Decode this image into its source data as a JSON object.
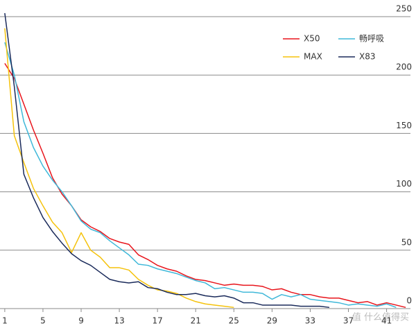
{
  "chart_data": {
    "type": "line",
    "x": [
      1,
      2,
      3,
      4,
      5,
      6,
      7,
      8,
      9,
      10,
      11,
      12,
      13,
      14,
      15,
      16,
      17,
      18,
      19,
      20,
      21,
      22,
      23,
      24,
      25,
      26,
      27,
      28,
      29,
      30,
      31,
      32,
      33,
      34,
      35,
      36,
      37,
      38,
      39,
      40,
      41,
      42,
      43
    ],
    "xlim": [
      0.5,
      43.5
    ],
    "xticks": [
      1,
      5,
      9,
      13,
      17,
      21,
      25,
      29,
      33,
      37,
      41
    ],
    "ylim": [
      0,
      250
    ],
    "yticks": [
      0,
      50,
      100,
      150,
      200,
      250
    ],
    "grid": true,
    "legend": "upper right",
    "series": [
      {
        "name": "X50",
        "color": "#e8141b",
        "values": [
          210,
          197,
          175,
          153,
          133,
          112,
          98,
          88,
          76,
          70,
          66,
          60,
          57,
          55,
          46,
          42,
          37,
          34,
          32,
          28,
          25,
          24,
          22,
          20,
          21,
          20,
          20,
          19,
          16,
          17,
          14,
          12,
          12,
          10,
          9,
          9,
          7,
          5,
          6,
          3,
          5,
          3,
          1
        ]
      },
      {
        "name": "畅呼吸",
        "color": "#3fb8d9",
        "values": [
          228,
          200,
          160,
          138,
          122,
          110,
          100,
          88,
          75,
          68,
          65,
          58,
          52,
          46,
          38,
          37,
          34,
          32,
          30,
          27,
          24,
          22,
          17,
          18,
          16,
          14,
          14,
          13,
          8,
          12,
          10,
          12,
          8,
          7,
          6,
          5,
          3,
          4,
          3,
          2,
          4,
          1,
          null
        ]
      },
      {
        "name": "MAX",
        "color": "#f5c20b",
        "values": [
          240,
          148,
          125,
          103,
          88,
          74,
          65,
          48,
          65,
          50,
          44,
          35,
          35,
          33,
          25,
          20,
          16,
          15,
          13,
          9,
          6,
          4,
          3,
          2,
          1,
          null,
          null,
          null,
          null,
          null,
          null,
          null,
          null,
          null,
          null,
          null,
          null,
          null,
          null,
          null,
          null,
          null,
          null
        ]
      },
      {
        "name": "X83",
        "color": "#1a2a5a",
        "values": [
          253,
          190,
          115,
          95,
          78,
          66,
          56,
          47,
          41,
          37,
          31,
          25,
          23,
          22,
          23,
          18,
          17,
          14,
          12,
          12,
          13,
          11,
          10,
          11,
          9,
          5,
          5,
          3,
          3,
          3,
          3,
          2,
          2,
          2,
          1,
          null,
          null,
          null,
          null,
          null,
          null,
          null,
          null
        ]
      }
    ]
  },
  "watermark": "值 什么值得买"
}
